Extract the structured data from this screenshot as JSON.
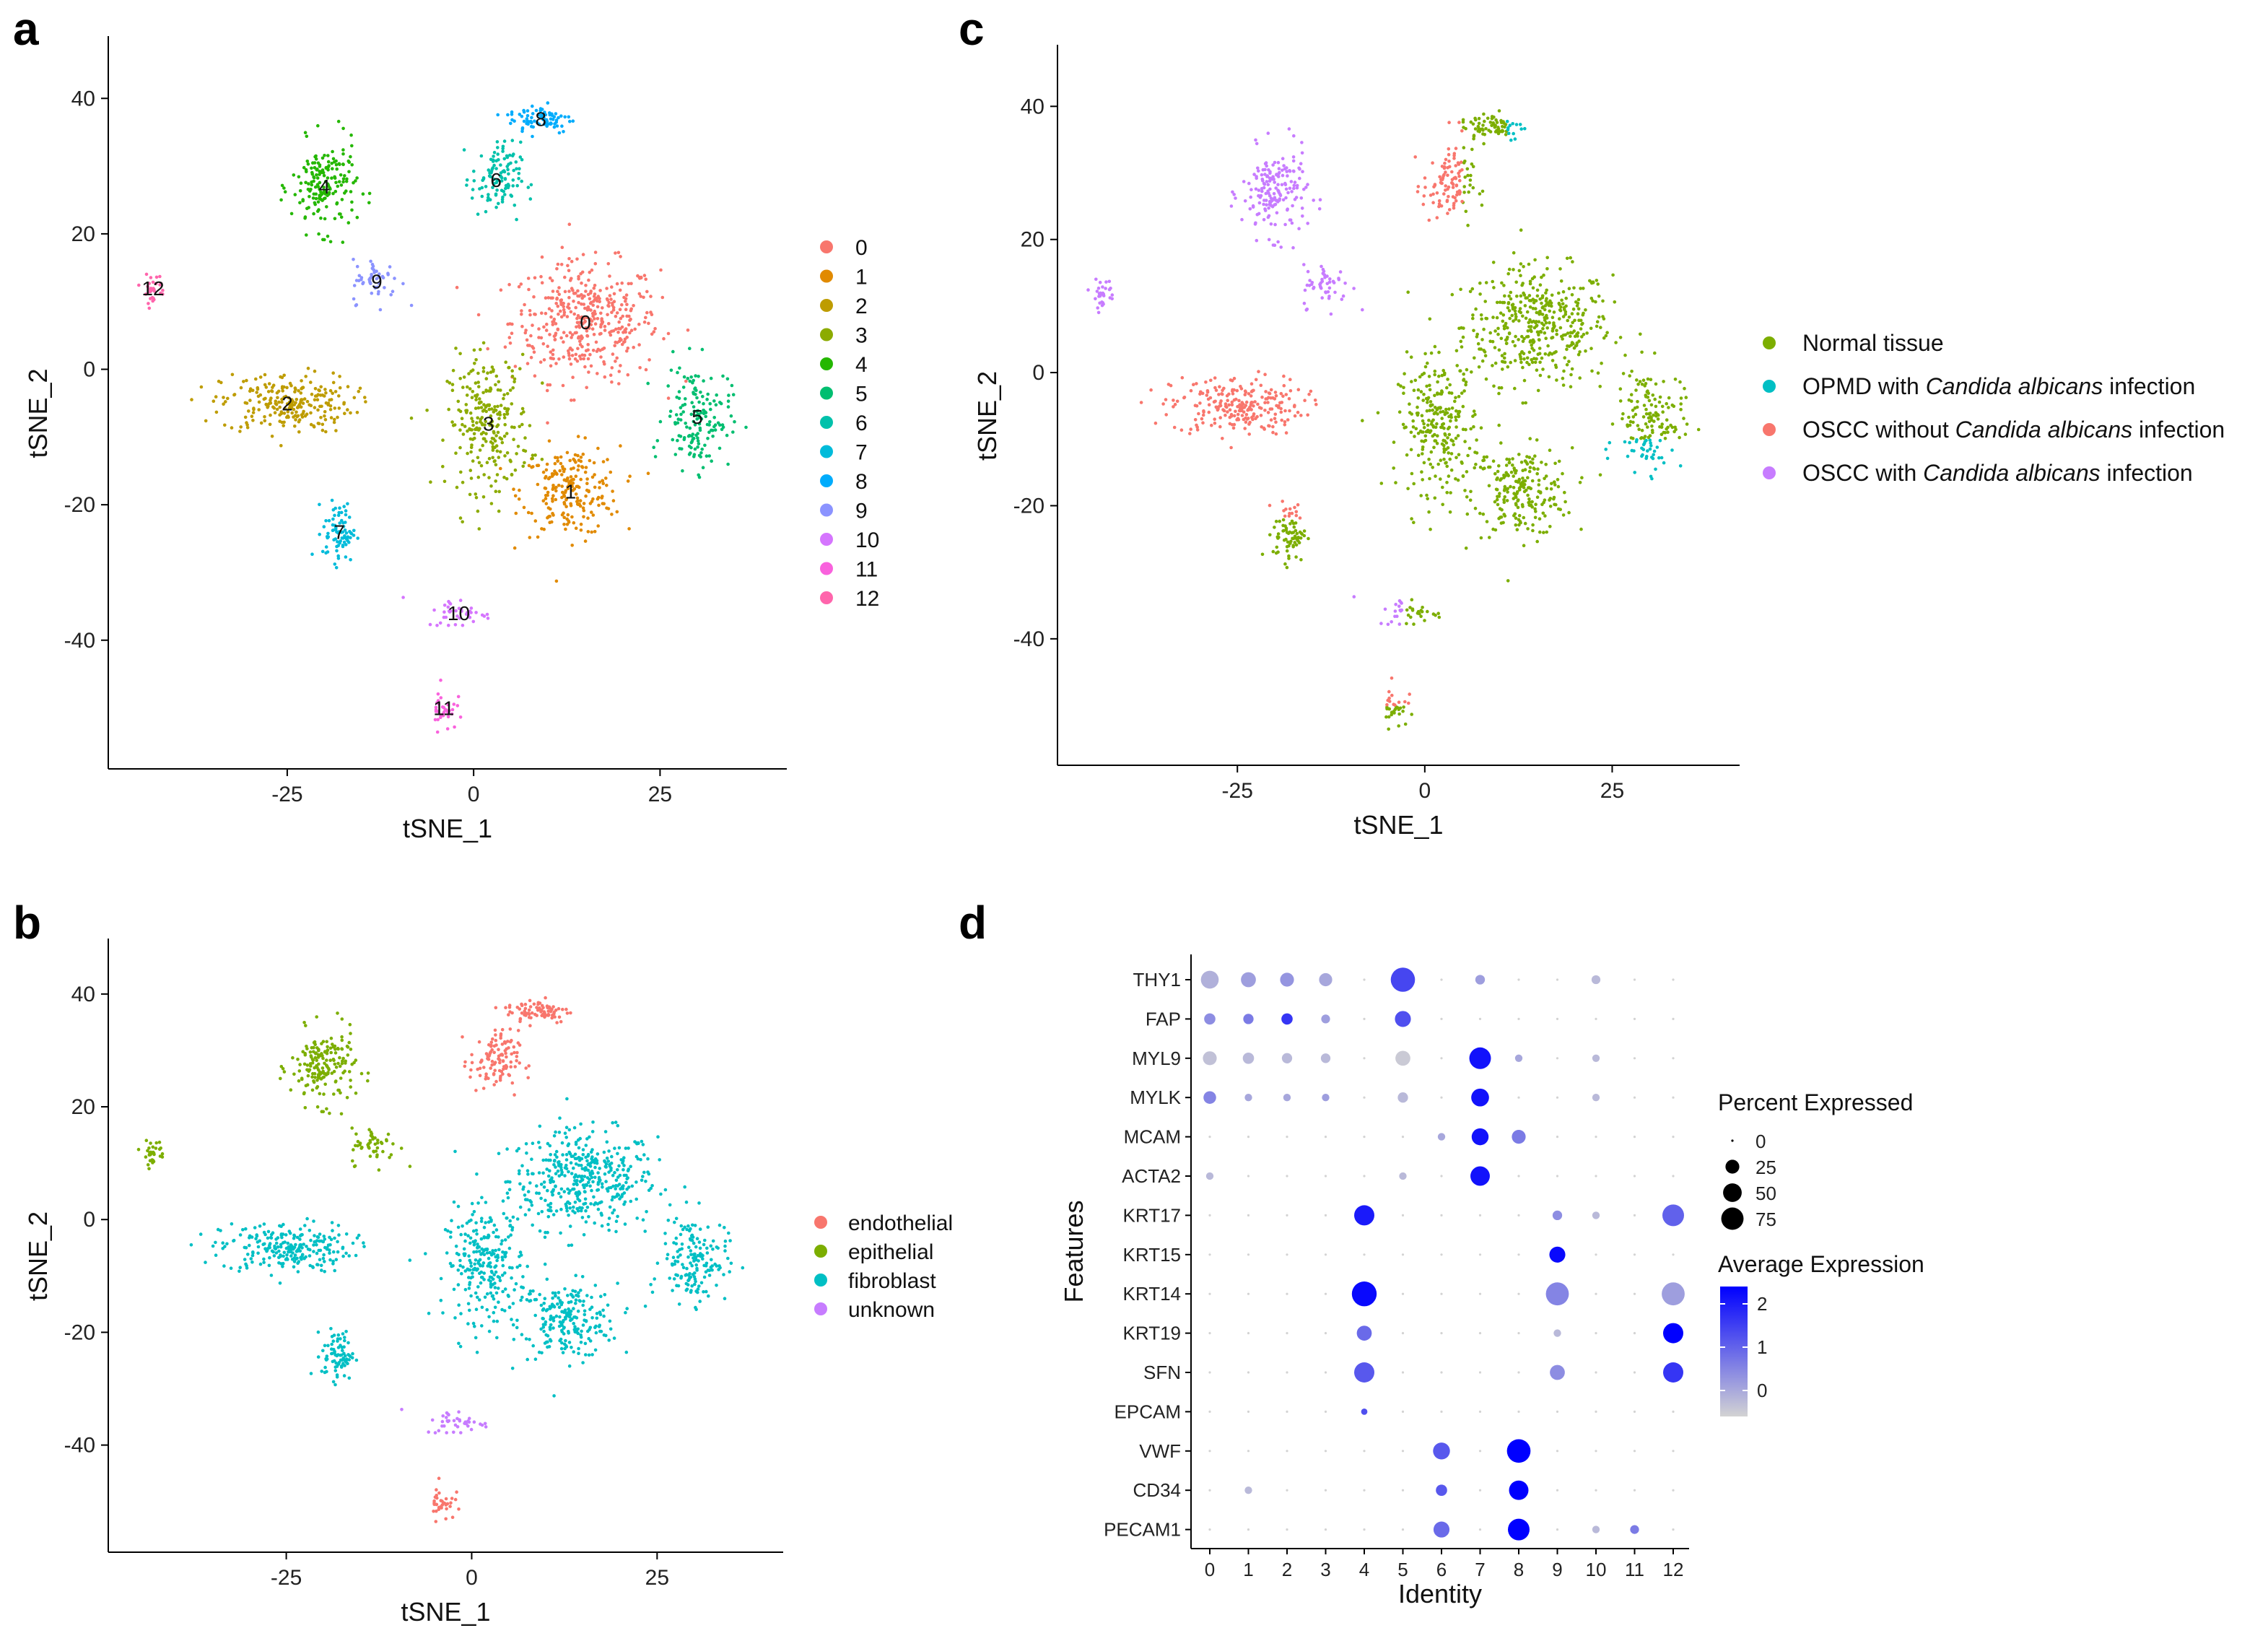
{
  "chart_data": [
    {
      "panel": "a",
      "type": "scatter",
      "xlabel": "tSNE_1",
      "ylabel": "tSNE_2",
      "xlim": [
        -49,
        42
      ],
      "ylim": [
        -59,
        46
      ],
      "xticks": [
        "-25",
        "0",
        "25"
      ],
      "yticks": [
        "40",
        "20",
        "0",
        "-20",
        "-40"
      ],
      "legend": [
        "0",
        "1",
        "2",
        "3",
        "4",
        "5",
        "6",
        "7",
        "8",
        "9",
        "10",
        "11",
        "12"
      ],
      "cluster_colors": [
        "#F8766D",
        "#E18A00",
        "#BE9C00",
        "#8CAB00",
        "#24B700",
        "#00BE70",
        "#00C1AB",
        "#00BBDA",
        "#00ACFC",
        "#8B93FF",
        "#D575FE",
        "#F962DD",
        "#FF65AC"
      ],
      "clusters": [
        {
          "label": "0",
          "center": [
            15,
            7
          ],
          "spread": [
            9,
            8
          ],
          "n": 420
        },
        {
          "label": "1",
          "center": [
            13,
            -18
          ],
          "spread": [
            6,
            6
          ],
          "n": 220
        },
        {
          "label": "2",
          "center": [
            -25,
            -5
          ],
          "spread": [
            8,
            4
          ],
          "n": 240
        },
        {
          "label": "3",
          "center": [
            2,
            -8
          ],
          "spread": [
            5,
            9
          ],
          "n": 260
        },
        {
          "label": "4",
          "center": [
            -20,
            27
          ],
          "spread": [
            4,
            6
          ],
          "n": 180
        },
        {
          "label": "5",
          "center": [
            30,
            -7
          ],
          "spread": [
            4,
            7
          ],
          "n": 160
        },
        {
          "label": "6",
          "center": [
            3,
            28
          ],
          "spread": [
            3,
            5
          ],
          "n": 110
        },
        {
          "label": "7",
          "center": [
            -18,
            -24
          ],
          "spread": [
            2,
            4
          ],
          "n": 80
        },
        {
          "label": "8",
          "center": [
            9,
            37
          ],
          "spread": [
            4,
            2
          ],
          "n": 80
        },
        {
          "label": "9",
          "center": [
            -13,
            13
          ],
          "spread": [
            3,
            3
          ],
          "n": 50
        },
        {
          "label": "10",
          "center": [
            -2,
            -36
          ],
          "spread": [
            4,
            2
          ],
          "n": 40
        },
        {
          "label": "11",
          "center": [
            -4,
            -50
          ],
          "spread": [
            1.5,
            3
          ],
          "n": 35
        },
        {
          "label": "12",
          "center": [
            -43,
            12
          ],
          "spread": [
            1.5,
            2
          ],
          "n": 30
        }
      ]
    },
    {
      "panel": "b",
      "type": "scatter",
      "xlabel": "tSNE_1",
      "ylabel": "tSNE_2",
      "xlim": [
        -49,
        42
      ],
      "ylim": [
        -59,
        46
      ],
      "xticks": [
        "-25",
        "0",
        "25"
      ],
      "yticks": [
        "40",
        "20",
        "0",
        "-20",
        "-40"
      ],
      "legend": [
        "endothelial",
        "epithelial",
        "fibroblast",
        "unknown"
      ],
      "legend_colors": [
        "#F8766D",
        "#7CAE00",
        "#00BFC4",
        "#C77CFF"
      ]
    },
    {
      "panel": "c",
      "type": "scatter",
      "xlabel": "tSNE_1",
      "ylabel": "tSNE_2",
      "xlim": [
        -49,
        42
      ],
      "ylim": [
        -59,
        46
      ],
      "xticks": [
        "-25",
        "0",
        "25"
      ],
      "yticks": [
        "40",
        "20",
        "0",
        "-20",
        "-40"
      ],
      "legend": [
        {
          "prefix": "Normal tissue",
          "italic": "",
          "suffix": ""
        },
        {
          "prefix": "OPMD with ",
          "italic": "Candida albicans",
          "suffix": " infection"
        },
        {
          "prefix": "OSCC without ",
          "italic": "Candida albicans",
          "suffix": " infection"
        },
        {
          "prefix": "OSCC with ",
          "italic": "Candida albicans",
          "suffix": " infection"
        }
      ],
      "legend_colors": [
        "#7CAE00",
        "#00BFC4",
        "#F8766D",
        "#C77CFF"
      ]
    },
    {
      "panel": "d",
      "type": "dotplot",
      "xlabel": "Identity",
      "ylabel": "Features",
      "identities": [
        "0",
        "1",
        "2",
        "3",
        "4",
        "5",
        "6",
        "7",
        "8",
        "9",
        "10",
        "11",
        "12"
      ],
      "features": [
        "THY1",
        "FAP",
        "MYL9",
        "MYLK",
        "MCAM",
        "ACTA2",
        "KRT17",
        "KRT15",
        "KRT14",
        "KRT19",
        "SFN",
        "EPCAM",
        "VWF",
        "CD34",
        "PECAM1"
      ],
      "percent_expressed": [
        [
          45,
          30,
          25,
          22,
          0,
          90,
          0,
          10,
          0,
          0,
          8,
          0,
          0
        ],
        [
          15,
          12,
          15,
          8,
          0,
          35,
          0,
          0,
          0,
          0,
          0,
          0,
          0
        ],
        [
          25,
          15,
          12,
          10,
          0,
          30,
          0,
          70,
          5,
          0,
          5,
          0,
          0
        ],
        [
          20,
          5,
          5,
          5,
          0,
          12,
          0,
          45,
          0,
          0,
          5,
          0,
          0
        ],
        [
          0,
          0,
          0,
          0,
          0,
          0,
          5,
          40,
          25,
          0,
          0,
          0,
          0
        ],
        [
          5,
          0,
          0,
          0,
          0,
          5,
          0,
          55,
          0,
          0,
          0,
          0,
          0
        ],
        [
          0,
          0,
          0,
          0,
          60,
          0,
          0,
          0,
          0,
          10,
          5,
          0,
          70
        ],
        [
          0,
          0,
          0,
          0,
          0,
          0,
          0,
          0,
          0,
          35,
          0,
          0,
          0
        ],
        [
          0,
          0,
          0,
          0,
          95,
          0,
          0,
          0,
          0,
          80,
          0,
          0,
          80
        ],
        [
          0,
          0,
          0,
          0,
          30,
          0,
          0,
          0,
          0,
          5,
          0,
          0,
          60
        ],
        [
          0,
          0,
          0,
          0,
          60,
          0,
          0,
          0,
          0,
          30,
          0,
          0,
          60
        ],
        [
          0,
          0,
          0,
          0,
          3,
          0,
          0,
          0,
          0,
          0,
          0,
          0,
          0
        ],
        [
          0,
          0,
          0,
          0,
          0,
          0,
          40,
          0,
          85,
          0,
          0,
          0,
          0
        ],
        [
          0,
          5,
          0,
          0,
          0,
          0,
          15,
          0,
          55,
          0,
          0,
          0,
          0
        ],
        [
          0,
          0,
          0,
          0,
          0,
          0,
          35,
          0,
          70,
          0,
          5,
          8,
          0
        ]
      ],
      "average_expression": [
        [
          0.4,
          0.6,
          0.7,
          0.5,
          0,
          1.6,
          0,
          0.6,
          0,
          0,
          0.3,
          0,
          0
        ],
        [
          0.8,
          1.0,
          1.8,
          0.6,
          0,
          1.5,
          0,
          0,
          0,
          0,
          0,
          0,
          0
        ],
        [
          0.2,
          0.3,
          0.3,
          0.3,
          0,
          0.1,
          0,
          2.2,
          0.5,
          0,
          0.3,
          0,
          0
        ],
        [
          0.9,
          0.5,
          0.5,
          0.6,
          0,
          0.3,
          0,
          2.2,
          0,
          0,
          0.3,
          0,
          0
        ],
        [
          0,
          0,
          0,
          0,
          0,
          0,
          0.5,
          2.2,
          1.0,
          0,
          0,
          0,
          0
        ],
        [
          0.3,
          0,
          0,
          0,
          0,
          0.3,
          0,
          2.2,
          0,
          0,
          0,
          0,
          0
        ],
        [
          0,
          0,
          0,
          0,
          2.1,
          0,
          0,
          0,
          0,
          0.8,
          0.3,
          0,
          1.3
        ],
        [
          0,
          0,
          0,
          0,
          0,
          0,
          0,
          0,
          0,
          2.3,
          0,
          0,
          0
        ],
        [
          0,
          0,
          0,
          0,
          2.3,
          0,
          0,
          0,
          0,
          0.9,
          0,
          0,
          0.6
        ],
        [
          0,
          0,
          0,
          0,
          1.2,
          0,
          0,
          0,
          0,
          0.3,
          0,
          0,
          2.4
        ],
        [
          0,
          0,
          0,
          0,
          1.4,
          0,
          0,
          0,
          0,
          0.8,
          0,
          0,
          1.8
        ],
        [
          0,
          0,
          0,
          0,
          1.5,
          0,
          0,
          0,
          0,
          0,
          0,
          0,
          0
        ],
        [
          0,
          0,
          0,
          0,
          0,
          0,
          1.4,
          0,
          2.4,
          0,
          0,
          0,
          0
        ],
        [
          0,
          0.3,
          0,
          0,
          0,
          0,
          1.4,
          0,
          2.4,
          0,
          0,
          0,
          0
        ],
        [
          0,
          0,
          0,
          0,
          0,
          0,
          1.2,
          0,
          2.4,
          0,
          0.3,
          1.0,
          0
        ]
      ],
      "size_legend_title": "Percent Expressed",
      "size_legend": [
        "0",
        "25",
        "50",
        "75"
      ],
      "color_legend_title": "Average Expression",
      "color_legend": [
        "2",
        "1",
        "0"
      ],
      "color_low": "#D3D3D3",
      "color_high": "#0000FF"
    }
  ],
  "panels": {
    "a": "a",
    "b": "b",
    "c": "c",
    "d": "d"
  }
}
